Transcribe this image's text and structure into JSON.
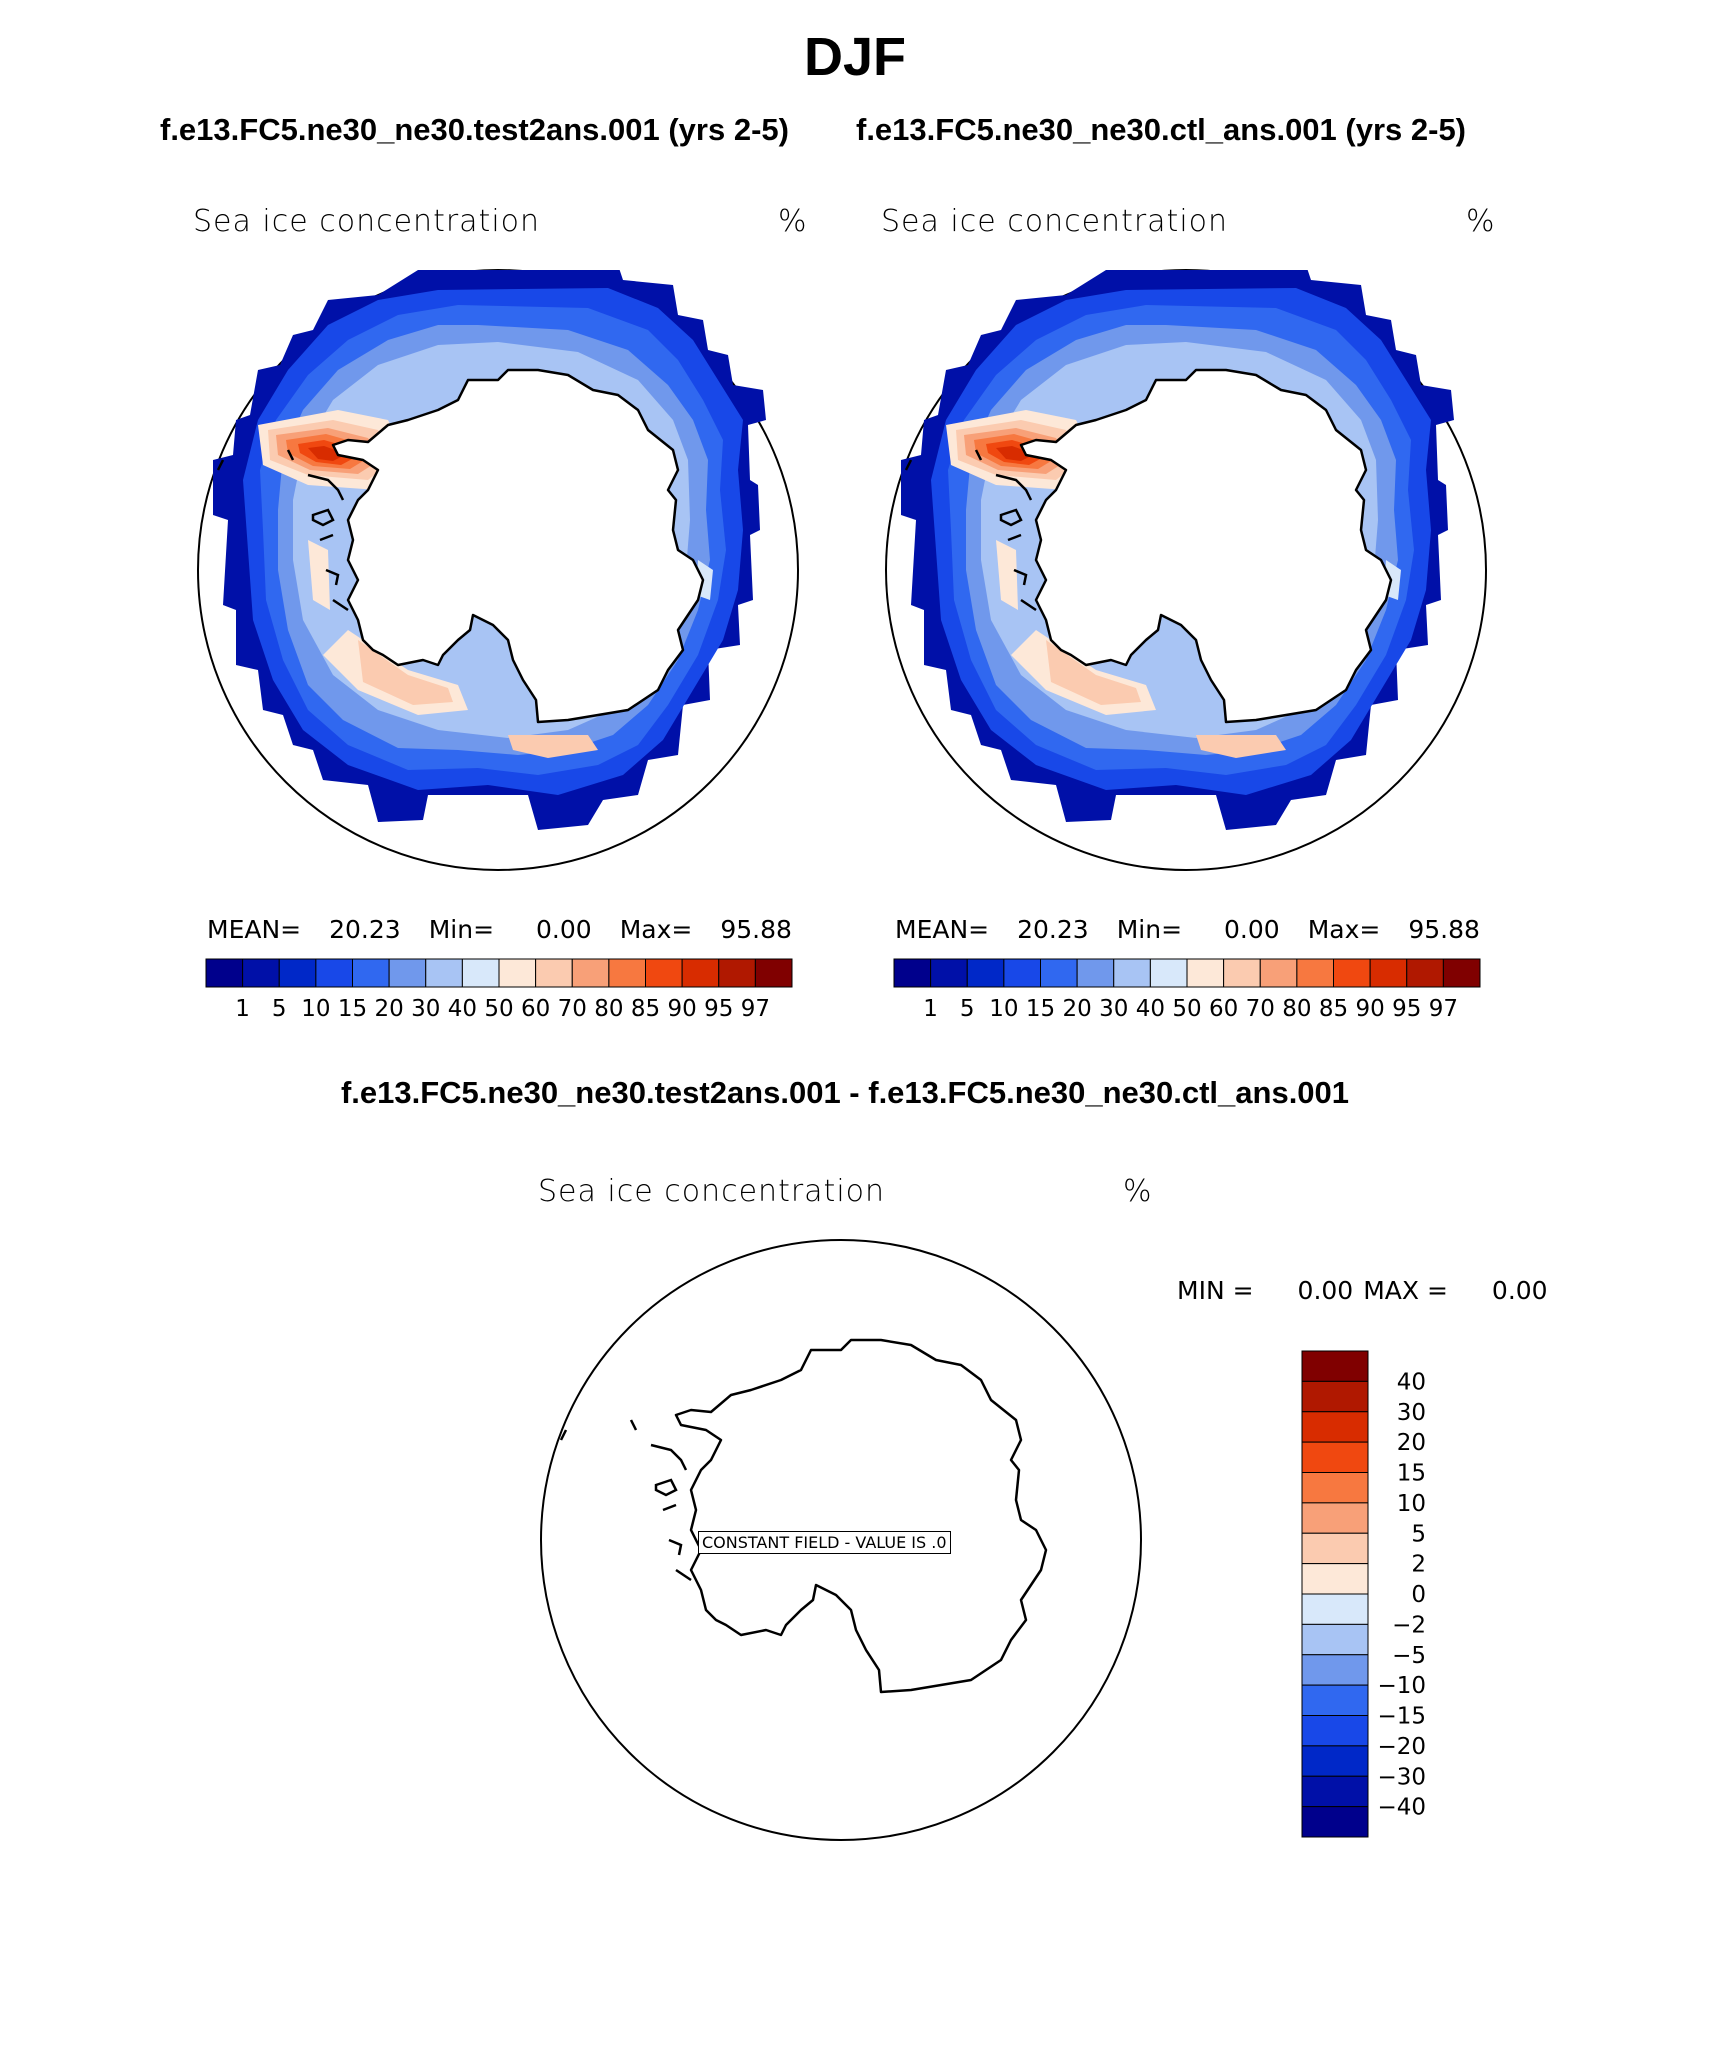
{
  "title": "DJF",
  "panels": [
    {
      "case_title": "f.e13.FC5.ne30_ne30.test2ans.001 (yrs 2-5)",
      "field": "Sea ice concentration",
      "units": "%",
      "stats": {
        "mean_label": "MEAN=",
        "mean": "20.23",
        "min_label": "Min=",
        "min": "0.00",
        "max_label": "Max=",
        "max": "95.88"
      }
    },
    {
      "case_title": "f.e13.FC5.ne30_ne30.ctl_ans.001 (yrs 2-5)",
      "field": "Sea ice concentration",
      "units": "%",
      "stats": {
        "mean_label": "MEAN=",
        "mean": "20.23",
        "min_label": "Min=",
        "min": "0.00",
        "max_label": "Max=",
        "max": "95.88"
      }
    }
  ],
  "difference": {
    "title": "f.e13.FC5.ne30_ne30.test2ans.001 - f.e13.FC5.ne30_ne30.ctl_ans.001",
    "field": "Sea ice concentration",
    "units": "%",
    "min_label": "MIN =",
    "min": "0.00",
    "max_label": "MAX =",
    "max": "0.00",
    "constant_field_note": "CONSTANT FIELD - VALUE IS .0"
  },
  "colorbars": {
    "main": {
      "labels": [
        "1",
        "5",
        "10",
        "15",
        "20",
        "30",
        "40",
        "50",
        "60",
        "70",
        "80",
        "85",
        "90",
        "95",
        "97"
      ],
      "colors": [
        "#00008c",
        "#0010a8",
        "#0028c8",
        "#1848e8",
        "#3068f0",
        "#7098ec",
        "#a8c4f4",
        "#d8e8fa",
        "#fde8d8",
        "#fbcbb0",
        "#f8a078",
        "#f77840",
        "#f04810",
        "#d82c00",
        "#b01800",
        "#800000"
      ]
    },
    "diff": {
      "labels": [
        "40",
        "30",
        "20",
        "15",
        "10",
        "5",
        "2",
        "0",
        "-2",
        "-5",
        "-10",
        "-15",
        "-20",
        "-30",
        "-40"
      ],
      "colors": [
        "#800000",
        "#b01800",
        "#d82c00",
        "#f04810",
        "#f77840",
        "#f8a078",
        "#fbcbb0",
        "#fde8d8",
        "#d8e8fa",
        "#a8c4f4",
        "#7098ec",
        "#3068f0",
        "#1848e8",
        "#0028c8",
        "#0010a8",
        "#00008c"
      ]
    }
  }
}
